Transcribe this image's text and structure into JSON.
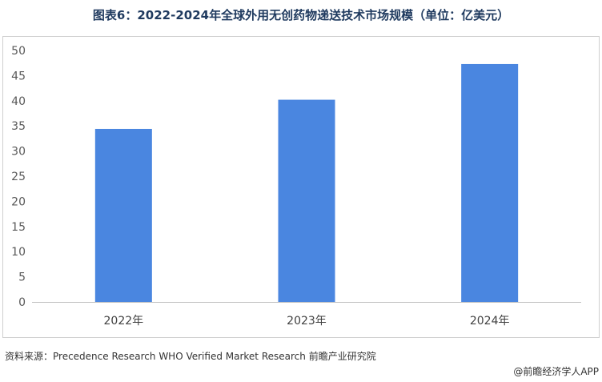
{
  "title": "图表6：2022-2024年全球外用无创药物递送技术市场规模（单位：亿美元）",
  "chart_data": {
    "type": "bar",
    "categories": [
      "2022年",
      "2023年",
      "2024年"
    ],
    "values": [
      34.4,
      40.2,
      47.3
    ],
    "ylim": [
      0,
      50
    ],
    "yticks": [
      0,
      5,
      10,
      15,
      20,
      25,
      30,
      35,
      40,
      45,
      50
    ],
    "grid": false,
    "bar_color": "#4a86e0"
  },
  "source": "资料来源：Precedence Research WHO Verified Market Research 前瞻产业研究院",
  "brand": "@前瞻经济学人APP"
}
